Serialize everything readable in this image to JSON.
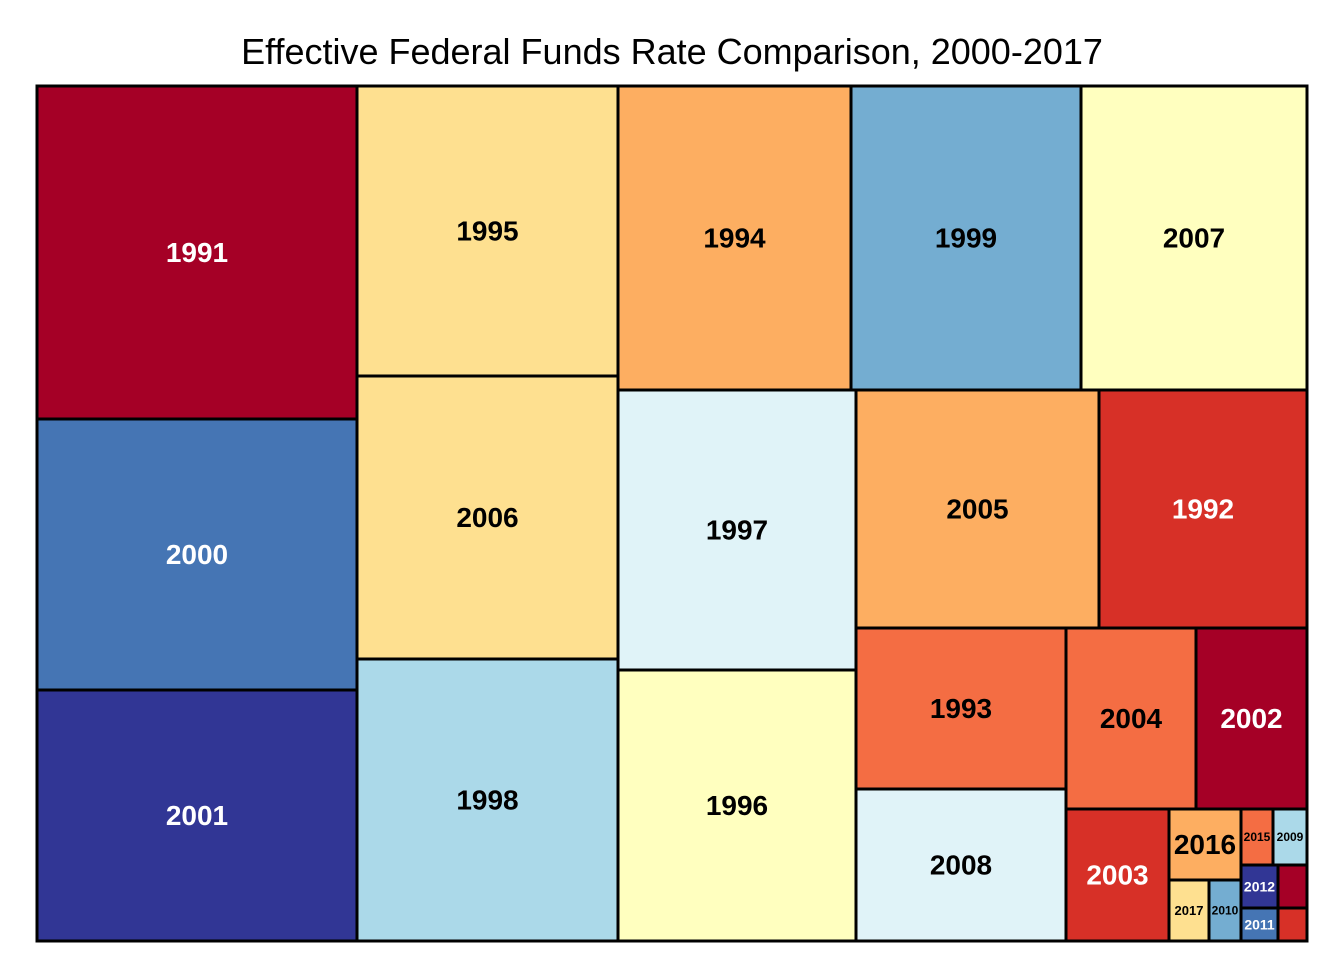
{
  "chart_data": {
    "type": "treemap",
    "title": "Effective Federal Funds Rate Comparison, 2000-2017",
    "cells": [
      {
        "label": "1991",
        "color": "#a50026"
      },
      {
        "label": "2000",
        "color": "#4575b4"
      },
      {
        "label": "2001",
        "color": "#313695"
      },
      {
        "label": "1995",
        "color": "#fee090"
      },
      {
        "label": "2006",
        "color": "#fee090"
      },
      {
        "label": "1998",
        "color": "#abd9e9"
      },
      {
        "label": "1994",
        "color": "#fdae61"
      },
      {
        "label": "1997",
        "color": "#e0f3f8"
      },
      {
        "label": "1996",
        "color": "#ffffbf"
      },
      {
        "label": "1999",
        "color": "#74add1"
      },
      {
        "label": "2007",
        "color": "#ffffbf"
      },
      {
        "label": "2005",
        "color": "#fdae61"
      },
      {
        "label": "1992",
        "color": "#d73027"
      },
      {
        "label": "1993",
        "color": "#f46d43"
      },
      {
        "label": "2008",
        "color": "#e0f3f8"
      },
      {
        "label": "2004",
        "color": "#f46d43"
      },
      {
        "label": "2002",
        "color": "#a50026"
      },
      {
        "label": "2003",
        "color": "#d73027"
      },
      {
        "label": "2016",
        "color": "#fdae61"
      },
      {
        "label": "2017",
        "color": "#fee090"
      },
      {
        "label": "2010",
        "color": "#74add1"
      },
      {
        "label": "2015",
        "color": "#f46d43"
      },
      {
        "label": "2009",
        "color": "#abd9e9"
      },
      {
        "label": "2012",
        "color": "#313695"
      },
      {
        "label": "2011",
        "color": "#4575b4"
      },
      {
        "label": "",
        "color": "#a50026"
      },
      {
        "label": "",
        "color": "#d73027"
      }
    ]
  }
}
